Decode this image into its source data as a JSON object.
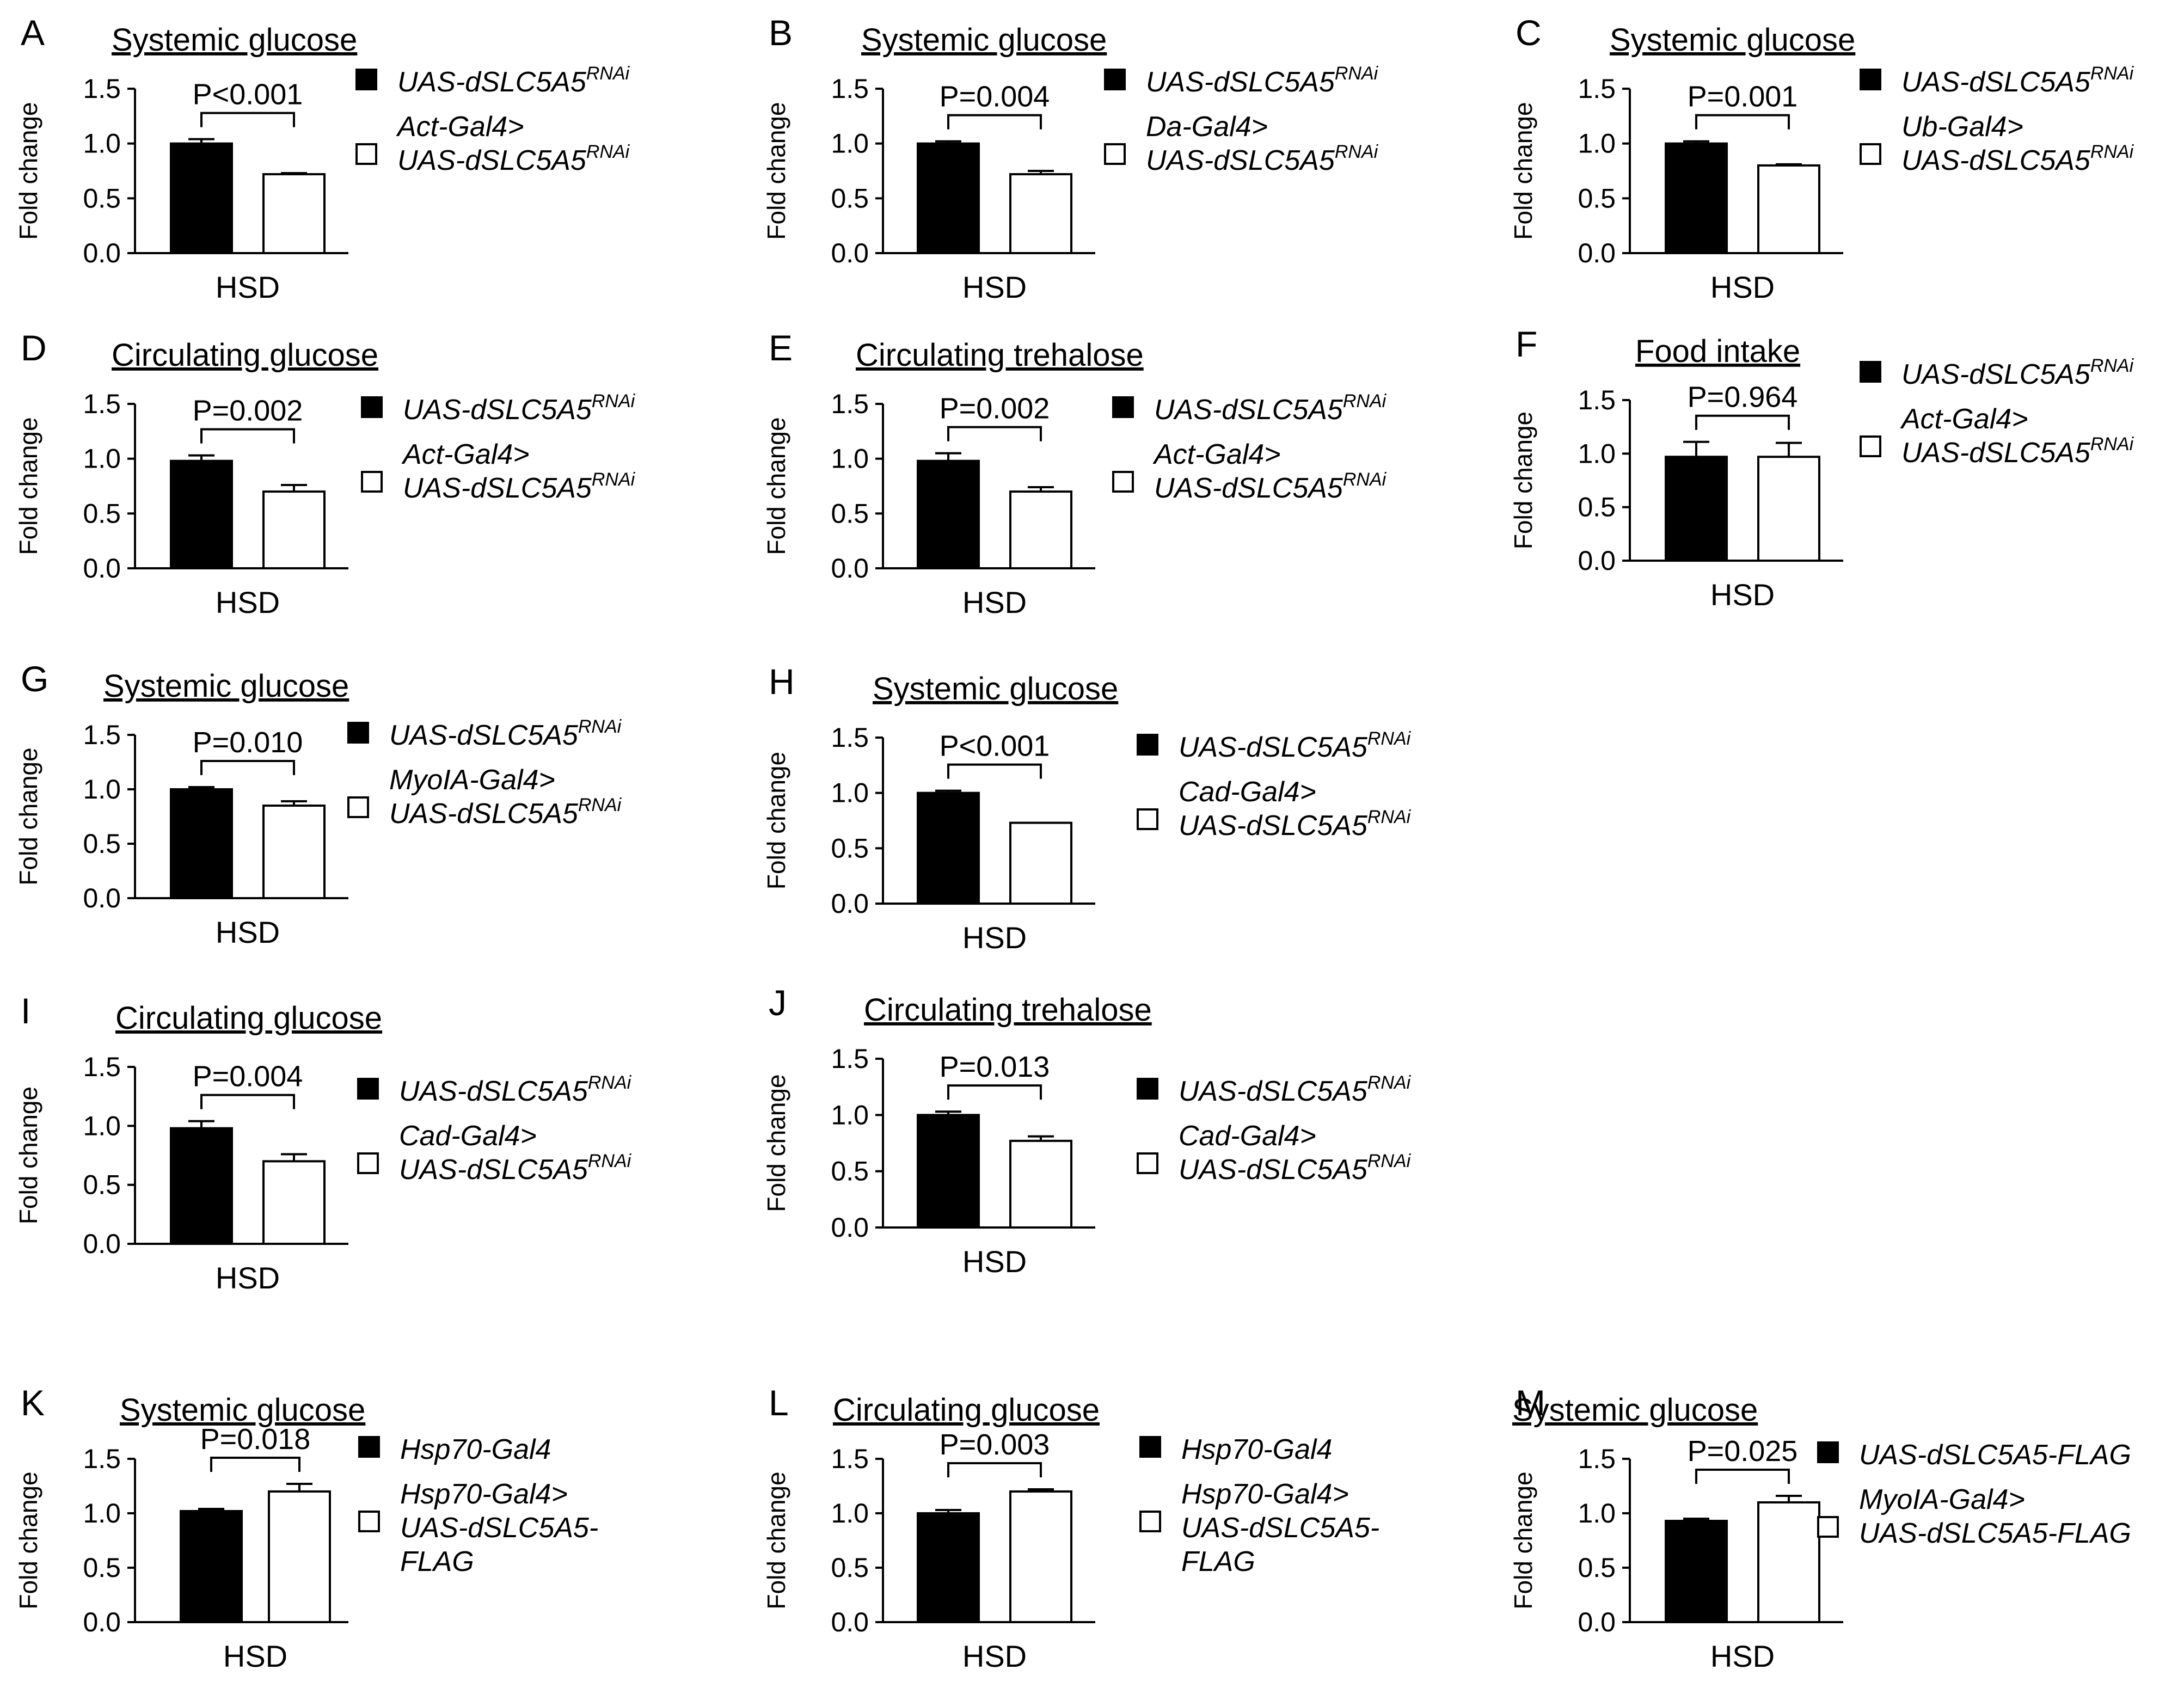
{
  "figure": {
    "panels": [
      {
        "letter": "A",
        "title": "Systemic glucose",
        "p_value": "P<0.001",
        "legend": [
          {
            "swatch": "#000000",
            "lines": [
              {
                "text": "UAS-dSLC5A5",
                "sup": "RNAi"
              }
            ]
          },
          {
            "swatch": "#ffffff",
            "lines": [
              {
                "text": "Act-Gal4>"
              },
              {
                "text": "UAS-dSLC5A5",
                "sup": "RNAi"
              }
            ]
          }
        ]
      },
      {
        "letter": "B",
        "title": "Systemic glucose",
        "p_value": "P=0.004",
        "legend": [
          {
            "swatch": "#000000",
            "lines": [
              {
                "text": "UAS-dSLC5A5",
                "sup": "RNAi"
              }
            ]
          },
          {
            "swatch": "#ffffff",
            "lines": [
              {
                "text": "Da-Gal4>"
              },
              {
                "text": "UAS-dSLC5A5",
                "sup": "RNAi"
              }
            ]
          }
        ]
      },
      {
        "letter": "C",
        "title": "Systemic glucose",
        "p_value": "P=0.001",
        "legend": [
          {
            "swatch": "#000000",
            "lines": [
              {
                "text": "UAS-dSLC5A5",
                "sup": "RNAi"
              }
            ]
          },
          {
            "swatch": "#ffffff",
            "lines": [
              {
                "text": "Ub-Gal4>"
              },
              {
                "text": "UAS-dSLC5A5",
                "sup": "RNAi"
              }
            ]
          }
        ]
      },
      {
        "letter": "D",
        "title": "Circulating glucose",
        "p_value": "P=0.002",
        "legend": [
          {
            "swatch": "#000000",
            "lines": [
              {
                "text": "UAS-dSLC5A5",
                "sup": "RNAi"
              }
            ]
          },
          {
            "swatch": "#ffffff",
            "lines": [
              {
                "text": "Act-Gal4>"
              },
              {
                "text": "UAS-dSLC5A5",
                "sup": "RNAi"
              }
            ]
          }
        ]
      },
      {
        "letter": "E",
        "title": "Circulating trehalose",
        "p_value": "P=0.002",
        "legend": [
          {
            "swatch": "#000000",
            "lines": [
              {
                "text": "UAS-dSLC5A5",
                "sup": "RNAi"
              }
            ]
          },
          {
            "swatch": "#ffffff",
            "lines": [
              {
                "text": "Act-Gal4>"
              },
              {
                "text": "UAS-dSLC5A5",
                "sup": "RNAi"
              }
            ]
          }
        ]
      },
      {
        "letter": "F",
        "title": "Food intake",
        "p_value": "P=0.964",
        "legend": [
          {
            "swatch": "#000000",
            "lines": [
              {
                "text": "UAS-dSLC5A5",
                "sup": "RNAi"
              }
            ]
          },
          {
            "swatch": "#ffffff",
            "lines": [
              {
                "text": "Act-Gal4>"
              },
              {
                "text": "UAS-dSLC5A5",
                "sup": "RNAi"
              }
            ]
          }
        ]
      },
      {
        "letter": "G",
        "title": "Systemic glucose",
        "p_value": "P=0.010",
        "legend": [
          {
            "swatch": "#000000",
            "lines": [
              {
                "text": "UAS-dSLC5A5",
                "sup": "RNAi"
              }
            ]
          },
          {
            "swatch": "#ffffff",
            "lines": [
              {
                "text": "MyoIA-Gal4>"
              },
              {
                "text": "UAS-dSLC5A5",
                "sup": "RNAi"
              }
            ]
          }
        ]
      },
      {
        "letter": "H",
        "title": "Systemic glucose",
        "p_value": "P<0.001",
        "legend": [
          {
            "swatch": "#000000",
            "lines": [
              {
                "text": "UAS-dSLC5A5",
                "sup": "RNAi"
              }
            ]
          },
          {
            "swatch": "#ffffff",
            "lines": [
              {
                "text": "Cad-Gal4>"
              },
              {
                "text": "UAS-dSLC5A5",
                "sup": "RNAi"
              }
            ]
          }
        ]
      },
      {
        "letter": "I",
        "title": "Circulating glucose",
        "p_value": "P=0.004",
        "legend": [
          {
            "swatch": "#000000",
            "lines": [
              {
                "text": "UAS-dSLC5A5",
                "sup": "RNAi"
              }
            ]
          },
          {
            "swatch": "#ffffff",
            "lines": [
              {
                "text": "Cad-Gal4>"
              },
              {
                "text": "UAS-dSLC5A5",
                "sup": "RNAi"
              }
            ]
          }
        ]
      },
      {
        "letter": "J",
        "title": "Circulating trehalose",
        "p_value": "P=0.013",
        "legend": [
          {
            "swatch": "#000000",
            "lines": [
              {
                "text": "UAS-dSLC5A5",
                "sup": "RNAi"
              }
            ]
          },
          {
            "swatch": "#ffffff",
            "lines": [
              {
                "text": "Cad-Gal4>"
              },
              {
                "text": "UAS-dSLC5A5",
                "sup": "RNAi"
              }
            ]
          }
        ]
      },
      {
        "letter": "K",
        "title": "Systemic glucose",
        "p_value": "P=0.018",
        "legend": [
          {
            "swatch": "#000000",
            "lines": [
              {
                "text": "Hsp70-Gal4"
              }
            ]
          },
          {
            "swatch": "#ffffff",
            "lines": [
              {
                "text": "Hsp70-Gal4>"
              },
              {
                "text": "UAS-dSLC5A5-"
              },
              {
                "text": "FLAG"
              }
            ]
          }
        ]
      },
      {
        "letter": "L",
        "title": "Circulating glucose",
        "p_value": "P=0.003",
        "legend": [
          {
            "swatch": "#000000",
            "lines": [
              {
                "text": "Hsp70-Gal4"
              }
            ]
          },
          {
            "swatch": "#ffffff",
            "lines": [
              {
                "text": "Hsp70-Gal4>"
              },
              {
                "text": "UAS-dSLC5A5-"
              },
              {
                "text": "FLAG"
              }
            ]
          }
        ]
      },
      {
        "letter": "M",
        "title": "Systemic glucose",
        "p_value": "P=0.025",
        "legend": [
          {
            "swatch": "#000000",
            "lines": [
              {
                "text": "UAS-dSLC5A5-FLAG"
              }
            ]
          },
          {
            "swatch": "#ffffff",
            "lines": [
              {
                "text": "MyoIA-Gal4>"
              },
              {
                "text": "UAS-dSLC5A5-FLAG"
              }
            ]
          }
        ]
      }
    ]
  },
  "chart_data": [
    {
      "type": "bar",
      "title": "Systemic glucose",
      "ylabel": "Fold change",
      "xlabel": "HSD",
      "ylim": [
        0,
        1.5
      ],
      "yticks": [
        "0.0",
        "0.5",
        "1.0",
        "1.5"
      ],
      "categories": [
        "HSD"
      ],
      "series": [
        {
          "name": "UAS-dSLC5A5RNAi",
          "values": [
            1.0
          ],
          "error": [
            0.04
          ]
        },
        {
          "name": "Act-Gal4>UAS-dSLC5A5RNAi",
          "values": [
            0.72
          ],
          "error": [
            0.01
          ]
        }
      ]
    },
    {
      "type": "bar",
      "title": "Systemic glucose",
      "ylabel": "Fold change",
      "xlabel": "HSD",
      "ylim": [
        0,
        1.5
      ],
      "yticks": [
        "0.0",
        "0.5",
        "1.0",
        "1.5"
      ],
      "categories": [
        "HSD"
      ],
      "series": [
        {
          "name": "UAS-dSLC5A5RNAi",
          "values": [
            1.0
          ],
          "error": [
            0.02
          ]
        },
        {
          "name": "Da-Gal4>UAS-dSLC5A5RNAi",
          "values": [
            0.72
          ],
          "error": [
            0.03
          ]
        }
      ]
    },
    {
      "type": "bar",
      "title": "Systemic glucose",
      "ylabel": "Fold change",
      "xlabel": "HSD",
      "ylim": [
        0,
        1.5
      ],
      "yticks": [
        "0.0",
        "0.5",
        "1.0",
        "1.5"
      ],
      "categories": [
        "HSD"
      ],
      "series": [
        {
          "name": "UAS-dSLC5A5RNAi",
          "values": [
            1.0
          ],
          "error": [
            0.02
          ]
        },
        {
          "name": "Ub-Gal4>UAS-dSLC5A5RNAi",
          "values": [
            0.8
          ],
          "error": [
            0.01
          ]
        }
      ]
    },
    {
      "type": "bar",
      "title": "Circulating glucose",
      "ylabel": "Fold change",
      "xlabel": "HSD",
      "ylim": [
        0,
        1.5
      ],
      "yticks": [
        "0.0",
        "0.5",
        "1.0",
        "1.5"
      ],
      "categories": [
        "HSD"
      ],
      "series": [
        {
          "name": "UAS-dSLC5A5RNAi",
          "values": [
            0.98
          ],
          "error": [
            0.05
          ]
        },
        {
          "name": "Act-Gal4>UAS-dSLC5A5RNAi",
          "values": [
            0.7
          ],
          "error": [
            0.06
          ]
        }
      ]
    },
    {
      "type": "bar",
      "title": "Circulating trehalose",
      "ylabel": "Fold change",
      "xlabel": "HSD",
      "ylim": [
        0,
        1.5
      ],
      "yticks": [
        "0.0",
        "0.5",
        "1.0",
        "1.5"
      ],
      "categories": [
        "HSD"
      ],
      "series": [
        {
          "name": "UAS-dSLC5A5RNAi",
          "values": [
            0.98
          ],
          "error": [
            0.07
          ]
        },
        {
          "name": "Act-Gal4>UAS-dSLC5A5RNAi",
          "values": [
            0.7
          ],
          "error": [
            0.04
          ]
        }
      ]
    },
    {
      "type": "bar",
      "title": "Food intake",
      "ylabel": "Fold change",
      "xlabel": "HSD",
      "ylim": [
        0,
        1.5
      ],
      "yticks": [
        "0.0",
        "0.5",
        "1.0",
        "1.5"
      ],
      "categories": [
        "HSD"
      ],
      "series": [
        {
          "name": "UAS-dSLC5A5RNAi",
          "values": [
            0.97
          ],
          "error": [
            0.14
          ]
        },
        {
          "name": "Act-Gal4>UAS-dSLC5A5RNAi",
          "values": [
            0.97
          ],
          "error": [
            0.13
          ]
        }
      ]
    },
    {
      "type": "bar",
      "title": "Systemic glucose",
      "ylabel": "Fold change",
      "xlabel": "HSD",
      "ylim": [
        0,
        1.5
      ],
      "yticks": [
        "0.0",
        "0.5",
        "1.0",
        "1.5"
      ],
      "categories": [
        "HSD"
      ],
      "series": [
        {
          "name": "UAS-dSLC5A5RNAi",
          "values": [
            1.0
          ],
          "error": [
            0.02
          ]
        },
        {
          "name": "MyoIA-Gal4>UAS-dSLC5A5RNAi",
          "values": [
            0.85
          ],
          "error": [
            0.04
          ]
        }
      ]
    },
    {
      "type": "bar",
      "title": "Systemic glucose",
      "ylabel": "Fold change",
      "xlabel": "HSD",
      "ylim": [
        0,
        1.5
      ],
      "yticks": [
        "0.0",
        "0.5",
        "1.0",
        "1.5"
      ],
      "categories": [
        "HSD"
      ],
      "series": [
        {
          "name": "UAS-dSLC5A5RNAi",
          "values": [
            1.0
          ],
          "error": [
            0.02
          ]
        },
        {
          "name": "Cad-Gal4>UAS-dSLC5A5RNAi",
          "values": [
            0.73
          ],
          "error": [
            0.0
          ]
        }
      ]
    },
    {
      "type": "bar",
      "title": "Circulating glucose",
      "ylabel": "Fold change",
      "xlabel": "HSD",
      "ylim": [
        0,
        1.5
      ],
      "yticks": [
        "0.0",
        "0.5",
        "1.0",
        "1.5"
      ],
      "categories": [
        "HSD"
      ],
      "series": [
        {
          "name": "UAS-dSLC5A5RNAi",
          "values": [
            0.98
          ],
          "error": [
            0.06
          ]
        },
        {
          "name": "Cad-Gal4>UAS-dSLC5A5RNAi",
          "values": [
            0.7
          ],
          "error": [
            0.06
          ]
        }
      ]
    },
    {
      "type": "bar",
      "title": "Circulating trehalose",
      "ylabel": "Fold change",
      "xlabel": "HSD",
      "ylim": [
        0,
        1.5
      ],
      "yticks": [
        "0.0",
        "0.5",
        "1.0",
        "1.5"
      ],
      "categories": [
        "HSD"
      ],
      "series": [
        {
          "name": "UAS-dSLC5A5RNAi",
          "values": [
            1.0
          ],
          "error": [
            0.03
          ]
        },
        {
          "name": "Cad-Gal4>UAS-dSLC5A5RNAi",
          "values": [
            0.77
          ],
          "error": [
            0.04
          ]
        }
      ]
    },
    {
      "type": "bar",
      "title": "Systemic glucose",
      "ylabel": "Fold change",
      "xlabel": "HSD",
      "ylim": [
        0,
        1.5
      ],
      "yticks": [
        "0.0",
        "0.5",
        "1.0",
        "1.5"
      ],
      "categories": [
        "HSD"
      ],
      "series": [
        {
          "name": "Hsp70-Gal4",
          "values": [
            1.02
          ],
          "error": [
            0.02
          ]
        },
        {
          "name": "Hsp70-Gal4>UAS-dSLC5A5-FLAG",
          "values": [
            1.2
          ],
          "error": [
            0.07
          ]
        }
      ]
    },
    {
      "type": "bar",
      "title": "Circulating glucose",
      "ylabel": "Fold change",
      "xlabel": "HSD",
      "ylim": [
        0,
        1.5
      ],
      "yticks": [
        "0.0",
        "0.5",
        "1.0",
        "1.5"
      ],
      "categories": [
        "HSD"
      ],
      "series": [
        {
          "name": "Hsp70-Gal4",
          "values": [
            1.0
          ],
          "error": [
            0.03
          ]
        },
        {
          "name": "Hsp70-Gal4>UAS-dSLC5A5-FLAG",
          "values": [
            1.2
          ],
          "error": [
            0.02
          ]
        }
      ]
    },
    {
      "type": "bar",
      "title": "Systemic glucose",
      "ylabel": "Fold change",
      "xlabel": "HSD",
      "ylim": [
        0,
        1.5
      ],
      "yticks": [
        "0.0",
        "0.5",
        "1.0",
        "1.5"
      ],
      "categories": [
        "HSD"
      ],
      "series": [
        {
          "name": "UAS-dSLC5A5-FLAG",
          "values": [
            0.93
          ],
          "error": [
            0.02
          ]
        },
        {
          "name": "MyoIA-Gal4>UAS-dSLC5A5-FLAG",
          "values": [
            1.1
          ],
          "error": [
            0.06
          ]
        }
      ]
    }
  ]
}
